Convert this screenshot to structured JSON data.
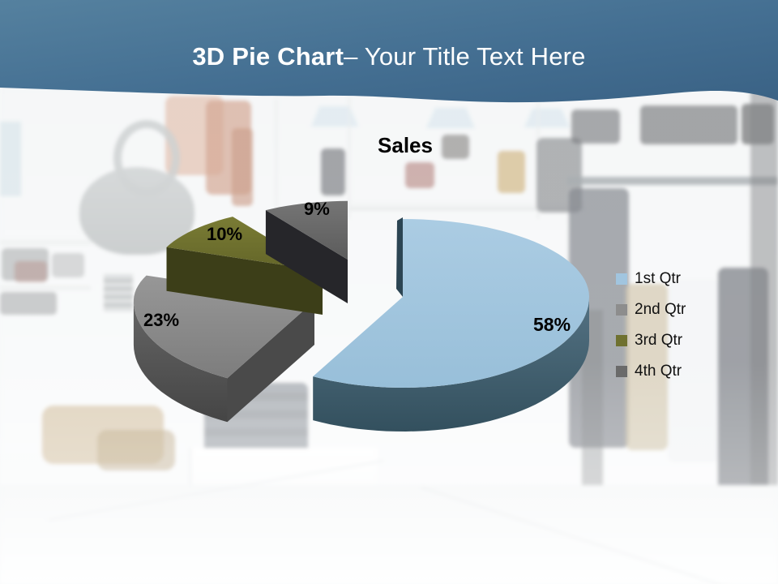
{
  "slide": {
    "title_bold": "3D Pie Chart",
    "title_rest": "– Your Title Text Here"
  },
  "chart_data": {
    "type": "pie",
    "title": "Sales",
    "unit": "percent",
    "exploded": true,
    "start_angle_deg": 0,
    "direction": "clockwise",
    "legend_position": "right",
    "categories": [
      "1st Qtr",
      "2nd Qtr",
      "3rd Qtr",
      "4th Qtr"
    ],
    "values": [
      58,
      23,
      10,
      9
    ],
    "slices": [
      {
        "category": "1st Qtr",
        "value": 58,
        "label": "58%",
        "color": "#a1c5df",
        "side_color": "#3f5d6d",
        "edge_color": "#2c4553"
      },
      {
        "category": "2nd Qtr",
        "value": 23,
        "label": "23%",
        "color": "#8d8d8d",
        "side_color": "#575757",
        "edge_color": "#4a4a4a"
      },
      {
        "category": "3rd Qtr",
        "value": 10,
        "label": "10%",
        "color": "#6f7130",
        "side_color": "#45471d",
        "edge_color": "#3c3e18"
      },
      {
        "category": "4th Qtr",
        "value": 9,
        "label": "9%",
        "color": "#6a6a6a",
        "side_color": "#2c2c2f",
        "edge_color": "#26262a"
      }
    ],
    "colors": {
      "header_gradient_top": "#54809f",
      "header_gradient_bottom": "#3a6285",
      "title_text": "#ffffff",
      "data_label_text": "#000000"
    }
  }
}
